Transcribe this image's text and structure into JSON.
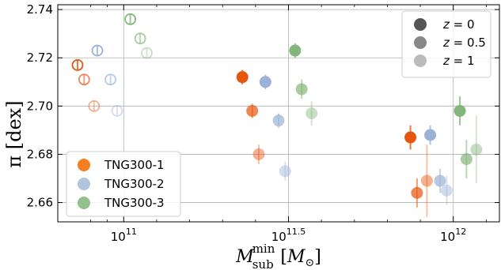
{
  "chart_data": {
    "type": "scatter",
    "xlabel_main": "M",
    "xlabel_sub": "sub",
    "xlabel_sup": "min",
    "xlabel_unit_open": " [",
    "xlabel_unit_main": "M",
    "xlabel_unit_sub": "⊙",
    "xlabel_unit_close": "]",
    "ylabel": "π [dex]",
    "x_scale": "log",
    "xlim": [
      10.8,
      12.14
    ],
    "ylim": [
      2.652,
      2.742
    ],
    "grid": true,
    "x_ticks": [
      {
        "x": 11.0,
        "base": "10",
        "exp": "11"
      },
      {
        "x": 11.5,
        "base": "10",
        "exp": "11.5"
      },
      {
        "x": 12.0,
        "base": "10",
        "exp": "12"
      }
    ],
    "y_ticks": [
      {
        "y": 2.66,
        "label": "2.66"
      },
      {
        "y": 2.68,
        "label": "2.68"
      },
      {
        "y": 2.7,
        "label": "2.70"
      },
      {
        "y": 2.72,
        "label": "2.72"
      },
      {
        "y": 2.74,
        "label": "2.74"
      }
    ],
    "legend_series": {
      "placement": "bottom-left",
      "entries": [
        {
          "name": "TNG300-1",
          "color": "#f57f20"
        },
        {
          "name": "TNG300-2",
          "color": "#b0c4de"
        },
        {
          "name": "TNG300-3",
          "color": "#93c08d"
        }
      ]
    },
    "legend_redshift": {
      "placement": "top-right",
      "entries": [
        {
          "label": "z = 0",
          "z_value": "0",
          "opacity": 1.0
        },
        {
          "label": "z = 0.5",
          "z_value": "0.5",
          "opacity": 0.7
        },
        {
          "label": "z = 1",
          "z_value": "1",
          "opacity": 0.45
        }
      ]
    },
    "series": [
      {
        "name": "TNG300-1",
        "marker": "open",
        "color": "#e6550d",
        "points": [
          {
            "x": 10.86,
            "y": 2.717,
            "yerr": 0.002,
            "z": "0"
          },
          {
            "x": 10.88,
            "y": 2.711,
            "yerr": 0.002,
            "z": "0.5"
          },
          {
            "x": 10.91,
            "y": 2.7,
            "yerr": 0.002,
            "z": "1"
          }
        ]
      },
      {
        "name": "TNG300-2",
        "marker": "open",
        "color": "#9bb2d6",
        "points": [
          {
            "x": 10.92,
            "y": 2.723,
            "yerr": 0.002,
            "z": "0"
          },
          {
            "x": 10.96,
            "y": 2.711,
            "yerr": 0.002,
            "z": "0.5"
          },
          {
            "x": 10.98,
            "y": 2.698,
            "yerr": 0.002,
            "z": "1"
          }
        ]
      },
      {
        "name": "TNG300-3",
        "marker": "open",
        "color": "#84b67c",
        "points": [
          {
            "x": 11.02,
            "y": 2.736,
            "yerr": 0.002,
            "z": "0"
          },
          {
            "x": 11.05,
            "y": 2.728,
            "yerr": 0.002,
            "z": "0.5"
          },
          {
            "x": 11.07,
            "y": 2.722,
            "yerr": 0.002,
            "z": "1"
          }
        ]
      },
      {
        "name": "TNG300-1",
        "marker": "filled",
        "color": "#e6550d",
        "points": [
          {
            "x": 11.36,
            "y": 2.712,
            "yerr": 0.003,
            "z": "0"
          },
          {
            "x": 11.39,
            "y": 2.698,
            "yerr": 0.003,
            "z": "0.5"
          },
          {
            "x": 11.41,
            "y": 2.68,
            "yerr": 0.004,
            "z": "1"
          }
        ]
      },
      {
        "name": "TNG300-2",
        "marker": "filled",
        "color": "#9bb2d6",
        "points": [
          {
            "x": 11.43,
            "y": 2.71,
            "yerr": 0.003,
            "z": "0"
          },
          {
            "x": 11.47,
            "y": 2.694,
            "yerr": 0.003,
            "z": "0.5"
          },
          {
            "x": 11.49,
            "y": 2.673,
            "yerr": 0.004,
            "z": "1"
          }
        ]
      },
      {
        "name": "TNG300-3",
        "marker": "filled",
        "color": "#84b67c",
        "points": [
          {
            "x": 11.52,
            "y": 2.723,
            "yerr": 0.003,
            "z": "0"
          },
          {
            "x": 11.54,
            "y": 2.707,
            "yerr": 0.004,
            "z": "0.5"
          },
          {
            "x": 11.57,
            "y": 2.697,
            "yerr": 0.005,
            "z": "1"
          }
        ]
      },
      {
        "name": "TNG300-1",
        "marker": "filled",
        "color": "#e6550d",
        "points": [
          {
            "x": 11.87,
            "y": 2.687,
            "yerr": 0.005,
            "z": "0"
          },
          {
            "x": 11.89,
            "y": 2.664,
            "yerr": 0.006,
            "z": "0.5"
          },
          {
            "x": 11.92,
            "y": 2.669,
            "yerr": 0.015,
            "z": "1"
          }
        ]
      },
      {
        "name": "TNG300-2",
        "marker": "filled",
        "color": "#9bb2d6",
        "points": [
          {
            "x": 11.93,
            "y": 2.688,
            "yerr": 0.004,
            "z": "0"
          },
          {
            "x": 11.96,
            "y": 2.669,
            "yerr": 0.005,
            "z": "0.5"
          },
          {
            "x": 11.98,
            "y": 2.665,
            "yerr": 0.006,
            "z": "1"
          }
        ]
      },
      {
        "name": "TNG300-3",
        "marker": "filled",
        "color": "#84b67c",
        "points": [
          {
            "x": 12.02,
            "y": 2.698,
            "yerr": 0.006,
            "z": "0"
          },
          {
            "x": 12.04,
            "y": 2.678,
            "yerr": 0.008,
            "z": "0.5"
          },
          {
            "x": 12.07,
            "y": 2.682,
            "yerr": 0.014,
            "z": "1"
          }
        ]
      }
    ]
  }
}
